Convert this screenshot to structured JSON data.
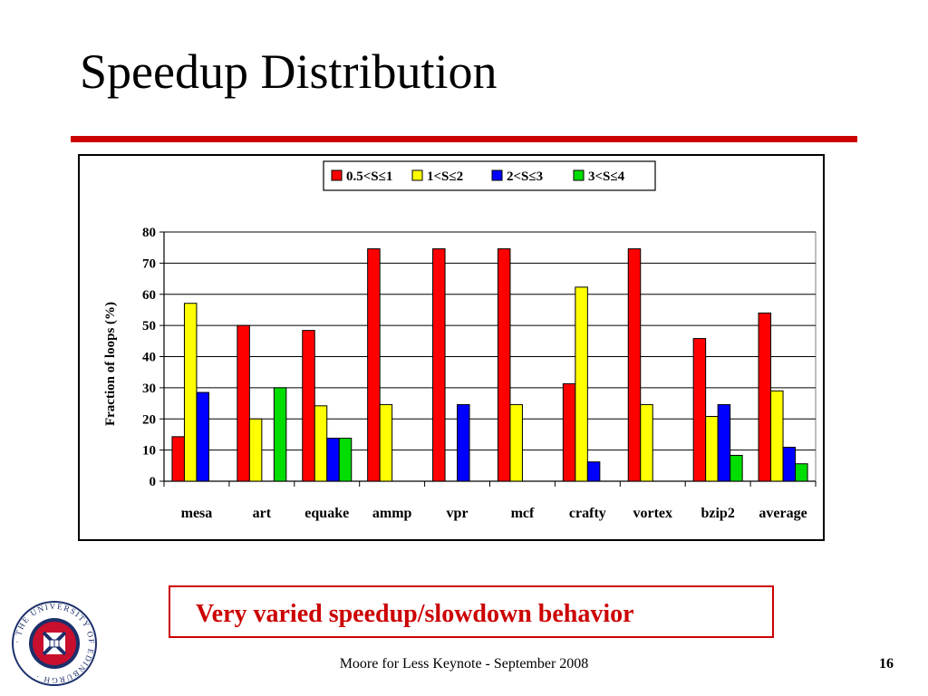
{
  "slide": {
    "title": "Speedup Distribution",
    "callout": "Very varied speedup/slowdown behavior",
    "footer": "Moore for Less Keynote - September 2008",
    "page_number": "16",
    "accent_color": "#cc0000",
    "logo_text": "THE UNIVERSITY OF EDINBURGH"
  },
  "chart_data": {
    "type": "bar",
    "title": "",
    "xlabel": "",
    "ylabel": "Fraction of loops (%)",
    "ylim": [
      0,
      80
    ],
    "yticks": [
      0,
      10,
      20,
      30,
      40,
      50,
      60,
      70,
      80
    ],
    "grid": true,
    "legend_position": "top-center",
    "categories": [
      "mesa",
      "art",
      "equake",
      "ammp",
      "vpr",
      "mcf",
      "crafty",
      "vortex",
      "bzip2",
      "average"
    ],
    "series": [
      {
        "name": "0.5<S≤1",
        "color": "#ff0000",
        "values": [
          14.3,
          50,
          48.4,
          74.6,
          74.6,
          74.6,
          31.3,
          74.6,
          45.8,
          54
        ]
      },
      {
        "name": "1<S≤2",
        "color": "#ffff00",
        "values": [
          57.1,
          20,
          24.2,
          24.6,
          0,
          24.6,
          62.3,
          24.6,
          20.8,
          29
        ]
      },
      {
        "name": "2<S≤3",
        "color": "#0000ff",
        "values": [
          28.5,
          0,
          13.8,
          0,
          24.6,
          0,
          6.2,
          0,
          24.6,
          10.9
        ]
      },
      {
        "name": "3<S≤4",
        "color": "#00dd00",
        "values": [
          0,
          30,
          13.8,
          0,
          0,
          0,
          0,
          0,
          8.3,
          5.6
        ]
      }
    ]
  }
}
